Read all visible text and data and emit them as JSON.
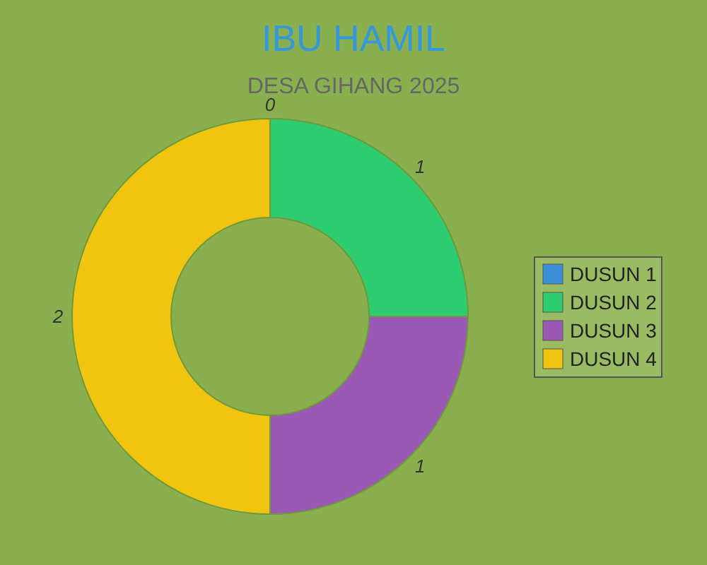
{
  "chart_data": {
    "type": "donut",
    "title": "IBU HAMIL",
    "subtitle": "DESA GIHANG 2025",
    "categories": [
      "DUSUN 1",
      "DUSUN 2",
      "DUSUN 3",
      "DUSUN 4"
    ],
    "values": [
      0,
      1,
      1,
      2
    ],
    "colors": [
      "#3b8fd9",
      "#2ecc71",
      "#9b59b6",
      "#f1c40f"
    ],
    "value_labels": [
      "0",
      "1",
      "1",
      "2"
    ],
    "legend": "right"
  }
}
